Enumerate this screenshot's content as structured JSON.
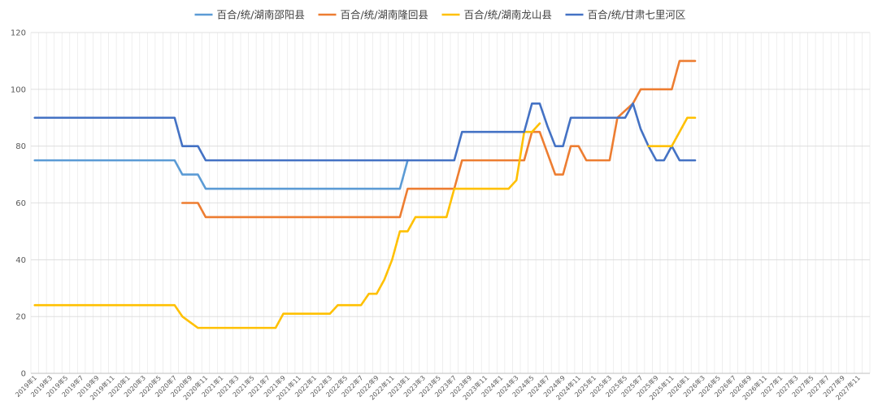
{
  "chart_data": {
    "type": "line",
    "title": "",
    "xlabel": "",
    "ylabel": "",
    "ylim": [
      0,
      120
    ],
    "yticks": [
      0,
      20,
      40,
      60,
      80,
      100,
      120
    ],
    "grid": true,
    "legend_position": "top",
    "x_tick_labels": [
      "2019年1",
      "2019年3",
      "2019年5",
      "2019年7",
      "2019年9",
      "2019年11",
      "2020年1",
      "2020年3",
      "2020年5",
      "2020年7",
      "2020年9",
      "2020年11",
      "2021年1",
      "2021年3",
      "2021年5",
      "2021年7",
      "2021年9",
      "2021年11",
      "2022年1",
      "2022年3",
      "2022年5",
      "2022年7",
      "2022年9",
      "2022年11",
      "2023年1",
      "2023年3",
      "2023年5",
      "2023年7",
      "2023年9",
      "2023年11",
      "2024年1",
      "2024年3",
      "2024年5",
      "2024年7",
      "2024年9",
      "2024年11",
      "2025年1",
      "2025年3",
      "2025年5",
      "2025年7",
      "2025年9",
      "2025年11",
      "2026年1",
      "2026年3",
      "2026年5",
      "2026年7",
      "2026年9",
      "2026年11",
      "2027年1",
      "2027年3",
      "2027年5",
      "2027年7",
      "2027年9",
      "2027年11"
    ],
    "series": [
      {
        "name": "百合/统/湖南邵阳县",
        "color": "#5b9bd5",
        "points": [
          [
            "2019-01",
            75
          ],
          [
            "2020-07",
            75
          ],
          [
            "2020-08",
            70
          ],
          [
            "2020-10",
            70
          ],
          [
            "2020-11",
            65
          ],
          [
            "2022-12",
            65
          ],
          [
            "2023-01",
            75
          ]
        ]
      },
      {
        "name": "百合/统/湖南隆回县",
        "color": "#ed7d31",
        "points": [
          [
            "2020-08",
            60
          ],
          [
            "2020-10",
            60
          ],
          [
            "2020-11",
            55
          ],
          [
            "2022-12",
            55
          ],
          [
            "2023-01",
            65
          ],
          [
            "2023-07",
            65
          ],
          [
            "2023-08",
            75
          ],
          [
            "2024-04",
            75
          ],
          [
            "2024-05",
            85
          ],
          [
            "2024-06",
            85
          ],
          [
            "2024-08",
            70
          ],
          [
            "2024-09",
            70
          ],
          [
            "2024-10",
            80
          ],
          [
            "2024-11",
            80
          ],
          [
            "2024-12",
            75
          ],
          [
            "2025-03",
            75
          ],
          [
            "2025-04",
            90
          ],
          [
            "2025-06",
            95
          ],
          [
            "2025-07",
            100
          ],
          [
            "2025-11",
            100
          ],
          [
            "2025-12",
            110
          ],
          [
            "2026-02",
            110
          ]
        ]
      },
      {
        "name": "百合/统/湖南龙山县",
        "color": "#ffc000",
        "points": [
          [
            "2019-01",
            24
          ],
          [
            "2020-07",
            24
          ],
          [
            "2020-08",
            20
          ],
          [
            "2020-09",
            18
          ],
          [
            "2020-10",
            16
          ],
          [
            "2021-08",
            16
          ],
          [
            "2021-09",
            21
          ],
          [
            "2022-03",
            21
          ],
          [
            "2022-04",
            24
          ],
          [
            "2022-07",
            24
          ],
          [
            "2022-08",
            28
          ],
          [
            "2022-09",
            28
          ],
          [
            "2022-10",
            33
          ],
          [
            "2022-11",
            40
          ],
          [
            "2022-12",
            50
          ],
          [
            "2023-01",
            50
          ],
          [
            "2023-02",
            55
          ],
          [
            "2023-06",
            55
          ],
          [
            "2023-07",
            65
          ],
          [
            "2024-02",
            65
          ],
          [
            "2024-03",
            68
          ],
          [
            "2024-04",
            85
          ],
          [
            "2024-05",
            85
          ],
          [
            "2024-06",
            88
          ]
        ]
      },
      {
        "name": "百合/统/甘肃七里河区",
        "color": "#4472c4",
        "points": [
          [
            "2019-01",
            90
          ],
          [
            "2020-07",
            90
          ],
          [
            "2020-08",
            80
          ],
          [
            "2020-10",
            80
          ],
          [
            "2020-11",
            75
          ],
          [
            "2023-07",
            75
          ],
          [
            "2023-08",
            85
          ],
          [
            "2024-04",
            85
          ],
          [
            "2024-05",
            95
          ],
          [
            "2024-06",
            95
          ],
          [
            "2024-07",
            87
          ],
          [
            "2024-08",
            80
          ],
          [
            "2024-09",
            80
          ],
          [
            "2024-10",
            90
          ],
          [
            "2025-05",
            90
          ],
          [
            "2025-06",
            95
          ],
          [
            "2025-07",
            86
          ],
          [
            "2025-08",
            80
          ],
          [
            "2025-09",
            75
          ],
          [
            "2025-10",
            75
          ],
          [
            "2025-11",
            80
          ],
          [
            "2025-12",
            75
          ],
          [
            "2026-02",
            75
          ]
        ]
      },
      {
        "name": "",
        "color": "#ffc000",
        "points": [
          [
            "2025-08",
            80
          ],
          [
            "2025-11",
            80
          ],
          [
            "2026-01",
            90
          ],
          [
            "2026-02",
            90
          ]
        ]
      }
    ]
  }
}
